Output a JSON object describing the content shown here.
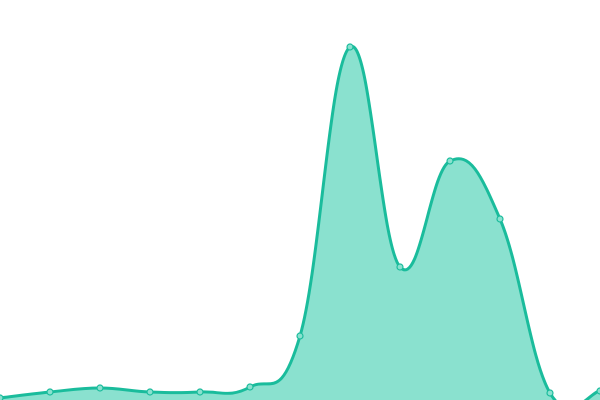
{
  "chart_data": {
    "type": "area",
    "title": "",
    "xlabel": "",
    "ylabel": "",
    "x": [
      0,
      1,
      2,
      3,
      4,
      5,
      6,
      7,
      8,
      9,
      10,
      11,
      12
    ],
    "values": [
      2,
      8,
      12,
      8,
      8,
      13,
      64,
      353,
      133,
      239,
      181,
      7,
      9
    ],
    "xlim": [
      0,
      12
    ],
    "ylim": [
      0,
      400
    ],
    "grid": false,
    "axes_visible": false,
    "smooth": true,
    "colors": {
      "line": "#1abc9c",
      "fill": "#8ae1cf",
      "point_fill": "#8ae1cf"
    }
  }
}
